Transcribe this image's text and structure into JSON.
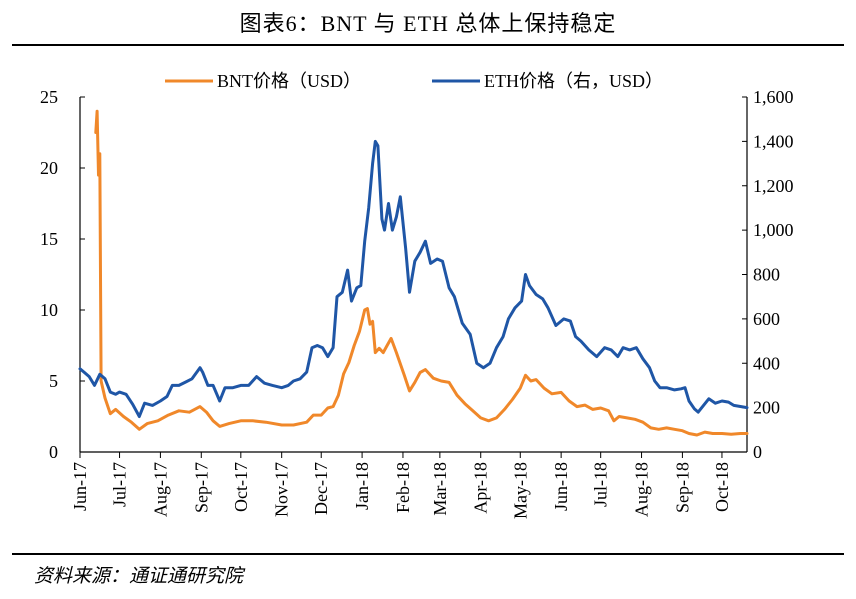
{
  "title": "图表6：BNT 与 ETH 总体上保持稳定",
  "source": "资料来源：通证通研究院",
  "chart_data": {
    "type": "line",
    "title": "图表6：BNT 与 ETH 总体上保持稳定",
    "xlabel": "",
    "ylabel_left": "",
    "ylabel_right": "",
    "x_ticks": [
      "Jun-17",
      "Jul-17",
      "Aug-17",
      "Sep-17",
      "Oct-17",
      "Nov-17",
      "Dec-17",
      "Jan-18",
      "Feb-18",
      "Mar-18",
      "Apr-18",
      "May-18",
      "Jun-18",
      "Jul-18",
      "Aug-18",
      "Sep-18",
      "Oct-18"
    ],
    "x_tick_dates": [
      "2017-06-01",
      "2017-07-01",
      "2017-08-01",
      "2017-09-01",
      "2017-10-01",
      "2017-11-01",
      "2017-12-01",
      "2018-01-01",
      "2018-02-01",
      "2018-03-01",
      "2018-04-01",
      "2018-05-01",
      "2018-06-01",
      "2018-07-01",
      "2018-08-01",
      "2018-09-01",
      "2018-10-01"
    ],
    "xlim": [
      "2017-06-01",
      "2018-10-20"
    ],
    "ylim_left": [
      0,
      25
    ],
    "ylim_right": [
      0,
      1600
    ],
    "y_ticks_left": [
      "0",
      "5",
      "10",
      "15",
      "20",
      "25"
    ],
    "y_ticks_right": [
      "0",
      "200",
      "400",
      "600",
      "800",
      "1,000",
      "1,200",
      "1,400",
      "1,600"
    ],
    "legend_position": "top",
    "grid": false,
    "series": [
      {
        "name": "BNT价格（USD）",
        "axis": "left",
        "color": "#f0882a",
        "points": [
          [
            "2017-06-13",
            22.5
          ],
          [
            "2017-06-14",
            24.0
          ],
          [
            "2017-06-15",
            19.5
          ],
          [
            "2017-06-16",
            21.0
          ],
          [
            "2017-06-17",
            5.0
          ],
          [
            "2017-06-20",
            3.8
          ],
          [
            "2017-06-24",
            2.7
          ],
          [
            "2017-06-28",
            3.0
          ],
          [
            "2017-07-04",
            2.5
          ],
          [
            "2017-07-10",
            2.1
          ],
          [
            "2017-07-16",
            1.6
          ],
          [
            "2017-07-22",
            2.0
          ],
          [
            "2017-07-30",
            2.2
          ],
          [
            "2017-08-07",
            2.6
          ],
          [
            "2017-08-15",
            2.9
          ],
          [
            "2017-08-23",
            2.8
          ],
          [
            "2017-08-31",
            3.2
          ],
          [
            "2017-09-05",
            2.8
          ],
          [
            "2017-09-10",
            2.2
          ],
          [
            "2017-09-15",
            1.8
          ],
          [
            "2017-09-22",
            2.0
          ],
          [
            "2017-10-01",
            2.2
          ],
          [
            "2017-10-10",
            2.2
          ],
          [
            "2017-10-20",
            2.1
          ],
          [
            "2017-11-01",
            1.9
          ],
          [
            "2017-11-10",
            1.9
          ],
          [
            "2017-11-20",
            2.1
          ],
          [
            "2017-11-25",
            2.6
          ],
          [
            "2017-12-01",
            2.6
          ],
          [
            "2017-12-06",
            3.1
          ],
          [
            "2017-12-10",
            3.2
          ],
          [
            "2017-12-14",
            4.0
          ],
          [
            "2017-12-18",
            5.5
          ],
          [
            "2017-12-22",
            6.3
          ],
          [
            "2017-12-26",
            7.5
          ],
          [
            "2017-12-30",
            8.5
          ],
          [
            "2018-01-03",
            10.0
          ],
          [
            "2018-01-05",
            10.1
          ],
          [
            "2018-01-07",
            9.0
          ],
          [
            "2018-01-09",
            9.2
          ],
          [
            "2018-01-11",
            7.0
          ],
          [
            "2018-01-14",
            7.3
          ],
          [
            "2018-01-17",
            7.0
          ],
          [
            "2018-01-20",
            7.5
          ],
          [
            "2018-01-23",
            8.0
          ],
          [
            "2018-01-27",
            7.0
          ],
          [
            "2018-02-02",
            5.4
          ],
          [
            "2018-02-06",
            4.3
          ],
          [
            "2018-02-10",
            4.9
          ],
          [
            "2018-02-14",
            5.6
          ],
          [
            "2018-02-18",
            5.8
          ],
          [
            "2018-02-24",
            5.2
          ],
          [
            "2018-03-02",
            5.0
          ],
          [
            "2018-03-08",
            4.9
          ],
          [
            "2018-03-14",
            4.0
          ],
          [
            "2018-03-20",
            3.4
          ],
          [
            "2018-03-26",
            2.9
          ],
          [
            "2018-04-01",
            2.4
          ],
          [
            "2018-04-07",
            2.2
          ],
          [
            "2018-04-13",
            2.4
          ],
          [
            "2018-04-19",
            3.0
          ],
          [
            "2018-04-25",
            3.7
          ],
          [
            "2018-05-01",
            4.5
          ],
          [
            "2018-05-05",
            5.4
          ],
          [
            "2018-05-09",
            5.0
          ],
          [
            "2018-05-13",
            5.1
          ],
          [
            "2018-05-19",
            4.5
          ],
          [
            "2018-05-25",
            4.1
          ],
          [
            "2018-06-01",
            4.2
          ],
          [
            "2018-06-07",
            3.6
          ],
          [
            "2018-06-13",
            3.2
          ],
          [
            "2018-06-19",
            3.3
          ],
          [
            "2018-06-25",
            3.0
          ],
          [
            "2018-07-01",
            3.1
          ],
          [
            "2018-07-07",
            2.9
          ],
          [
            "2018-07-11",
            2.2
          ],
          [
            "2018-07-15",
            2.5
          ],
          [
            "2018-07-21",
            2.4
          ],
          [
            "2018-07-27",
            2.3
          ],
          [
            "2018-08-02",
            2.1
          ],
          [
            "2018-08-08",
            1.7
          ],
          [
            "2018-08-14",
            1.6
          ],
          [
            "2018-08-20",
            1.7
          ],
          [
            "2018-08-26",
            1.6
          ],
          [
            "2018-09-01",
            1.5
          ],
          [
            "2018-09-06",
            1.3
          ],
          [
            "2018-09-12",
            1.2
          ],
          [
            "2018-09-18",
            1.4
          ],
          [
            "2018-09-24",
            1.3
          ],
          [
            "2018-10-01",
            1.3
          ],
          [
            "2018-10-08",
            1.25
          ],
          [
            "2018-10-15",
            1.3
          ],
          [
            "2018-10-20",
            1.3
          ]
        ]
      },
      {
        "name": "ETH价格（右，USD）",
        "axis": "right",
        "color": "#1f56a6",
        "points": [
          [
            "2017-06-01",
            375
          ],
          [
            "2017-06-04",
            360
          ],
          [
            "2017-06-08",
            340
          ],
          [
            "2017-06-12",
            300
          ],
          [
            "2017-06-16",
            350
          ],
          [
            "2017-06-20",
            330
          ],
          [
            "2017-06-24",
            270
          ],
          [
            "2017-06-28",
            260
          ],
          [
            "2017-07-01",
            270
          ],
          [
            "2017-07-06",
            260
          ],
          [
            "2017-07-11",
            215
          ],
          [
            "2017-07-16",
            160
          ],
          [
            "2017-07-20",
            220
          ],
          [
            "2017-07-26",
            210
          ],
          [
            "2017-08-01",
            230
          ],
          [
            "2017-08-06",
            250
          ],
          [
            "2017-08-10",
            300
          ],
          [
            "2017-08-15",
            300
          ],
          [
            "2017-08-20",
            315
          ],
          [
            "2017-08-25",
            330
          ],
          [
            "2017-08-31",
            380
          ],
          [
            "2017-09-02",
            360
          ],
          [
            "2017-09-06",
            300
          ],
          [
            "2017-09-10",
            300
          ],
          [
            "2017-09-15",
            230
          ],
          [
            "2017-09-19",
            290
          ],
          [
            "2017-09-25",
            290
          ],
          [
            "2017-10-01",
            300
          ],
          [
            "2017-10-07",
            300
          ],
          [
            "2017-10-13",
            340
          ],
          [
            "2017-10-19",
            310
          ],
          [
            "2017-10-25",
            300
          ],
          [
            "2017-11-01",
            290
          ],
          [
            "2017-11-06",
            300
          ],
          [
            "2017-11-10",
            320
          ],
          [
            "2017-11-15",
            330
          ],
          [
            "2017-11-20",
            360
          ],
          [
            "2017-11-24",
            470
          ],
          [
            "2017-11-28",
            480
          ],
          [
            "2017-12-02",
            470
          ],
          [
            "2017-12-06",
            430
          ],
          [
            "2017-12-10",
            470
          ],
          [
            "2017-12-13",
            700
          ],
          [
            "2017-12-17",
            720
          ],
          [
            "2017-12-21",
            820
          ],
          [
            "2017-12-24",
            680
          ],
          [
            "2017-12-28",
            740
          ],
          [
            "2017-12-31",
            750
          ],
          [
            "2018-01-03",
            950
          ],
          [
            "2018-01-06",
            1100
          ],
          [
            "2018-01-09",
            1300
          ],
          [
            "2018-01-11",
            1400
          ],
          [
            "2018-01-13",
            1380
          ],
          [
            "2018-01-16",
            1050
          ],
          [
            "2018-01-18",
            1000
          ],
          [
            "2018-01-21",
            1120
          ],
          [
            "2018-01-24",
            1000
          ],
          [
            "2018-01-27",
            1060
          ],
          [
            "2018-01-30",
            1150
          ],
          [
            "2018-02-03",
            920
          ],
          [
            "2018-02-06",
            720
          ],
          [
            "2018-02-10",
            860
          ],
          [
            "2018-02-14",
            900
          ],
          [
            "2018-02-18",
            950
          ],
          [
            "2018-02-22",
            850
          ],
          [
            "2018-02-27",
            870
          ],
          [
            "2018-03-03",
            860
          ],
          [
            "2018-03-08",
            740
          ],
          [
            "2018-03-12",
            700
          ],
          [
            "2018-03-18",
            580
          ],
          [
            "2018-03-24",
            530
          ],
          [
            "2018-03-29",
            400
          ],
          [
            "2018-04-03",
            380
          ],
          [
            "2018-04-08",
            400
          ],
          [
            "2018-04-13",
            470
          ],
          [
            "2018-04-18",
            520
          ],
          [
            "2018-04-22",
            600
          ],
          [
            "2018-04-27",
            650
          ],
          [
            "2018-05-02",
            680
          ],
          [
            "2018-05-05",
            800
          ],
          [
            "2018-05-08",
            750
          ],
          [
            "2018-05-13",
            710
          ],
          [
            "2018-05-18",
            690
          ],
          [
            "2018-05-22",
            650
          ],
          [
            "2018-05-28",
            570
          ],
          [
            "2018-06-03",
            600
          ],
          [
            "2018-06-08",
            590
          ],
          [
            "2018-06-12",
            520
          ],
          [
            "2018-06-16",
            500
          ],
          [
            "2018-06-22",
            460
          ],
          [
            "2018-06-28",
            430
          ],
          [
            "2018-07-04",
            470
          ],
          [
            "2018-07-09",
            460
          ],
          [
            "2018-07-14",
            430
          ],
          [
            "2018-07-18",
            470
          ],
          [
            "2018-07-23",
            460
          ],
          [
            "2018-07-28",
            470
          ],
          [
            "2018-08-02",
            420
          ],
          [
            "2018-08-07",
            380
          ],
          [
            "2018-08-11",
            320
          ],
          [
            "2018-08-15",
            290
          ],
          [
            "2018-08-20",
            290
          ],
          [
            "2018-08-26",
            280
          ],
          [
            "2018-08-31",
            285
          ],
          [
            "2018-09-03",
            290
          ],
          [
            "2018-09-06",
            230
          ],
          [
            "2018-09-10",
            195
          ],
          [
            "2018-09-13",
            180
          ],
          [
            "2018-09-17",
            210
          ],
          [
            "2018-09-21",
            240
          ],
          [
            "2018-09-26",
            220
          ],
          [
            "2018-10-01",
            230
          ],
          [
            "2018-10-06",
            225
          ],
          [
            "2018-10-10",
            210
          ],
          [
            "2018-10-15",
            205
          ],
          [
            "2018-10-20",
            200
          ]
        ]
      }
    ]
  }
}
